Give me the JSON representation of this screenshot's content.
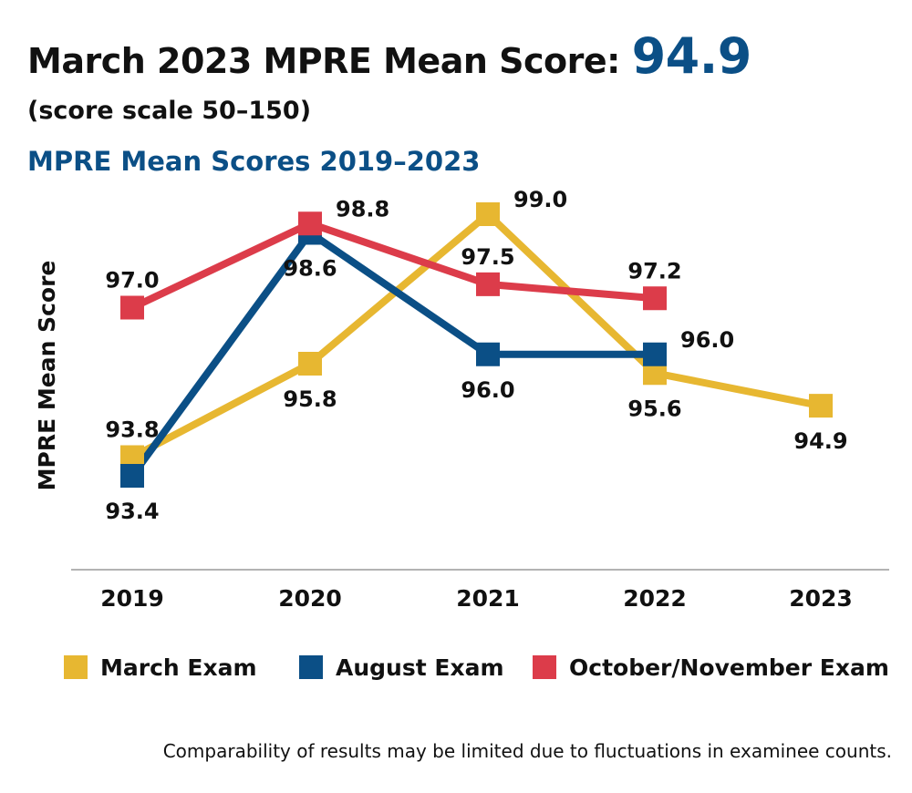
{
  "header": {
    "headline_prefix": "March 2023 MPRE Mean Score: ",
    "headline_value": "94.9",
    "subtitle": "(score scale 50–150)"
  },
  "chart_data": {
    "type": "line",
    "title": "MPRE Mean Scores 2019–2023",
    "xlabel": "",
    "ylabel": "MPRE Mean Score",
    "categories": [
      "2019",
      "2020",
      "2021",
      "2022",
      "2023"
    ],
    "ylim": [
      92,
      99.8
    ],
    "grid": false,
    "legend_position": "bottom",
    "series": [
      {
        "name": "March Exam",
        "color": "#e7b731",
        "values": [
          93.8,
          95.8,
          99.0,
          95.6,
          94.9
        ],
        "labels": [
          "93.8",
          "95.8",
          "99.0",
          "95.6",
          "94.9"
        ],
        "label_side": [
          "above",
          "below",
          "right",
          "below",
          "below"
        ]
      },
      {
        "name": "August Exam",
        "color": "#0b4f86",
        "values": [
          93.4,
          98.6,
          96.0,
          96.0,
          null
        ],
        "labels": [
          "93.4",
          "98.6",
          "96.0",
          "96.0",
          ""
        ],
        "label_side": [
          "below",
          "below",
          "below",
          "right",
          ""
        ]
      },
      {
        "name": "October/November Exam",
        "color": "#dc3c4a",
        "values": [
          97.0,
          98.8,
          97.5,
          97.2,
          null
        ],
        "labels": [
          "97.0",
          "98.8",
          "97.5",
          "97.2",
          ""
        ],
        "label_side": [
          "above",
          "right",
          "above",
          "above",
          ""
        ]
      }
    ]
  },
  "footnote": "Comparability of results may be limited due to fluctuations in examinee counts."
}
